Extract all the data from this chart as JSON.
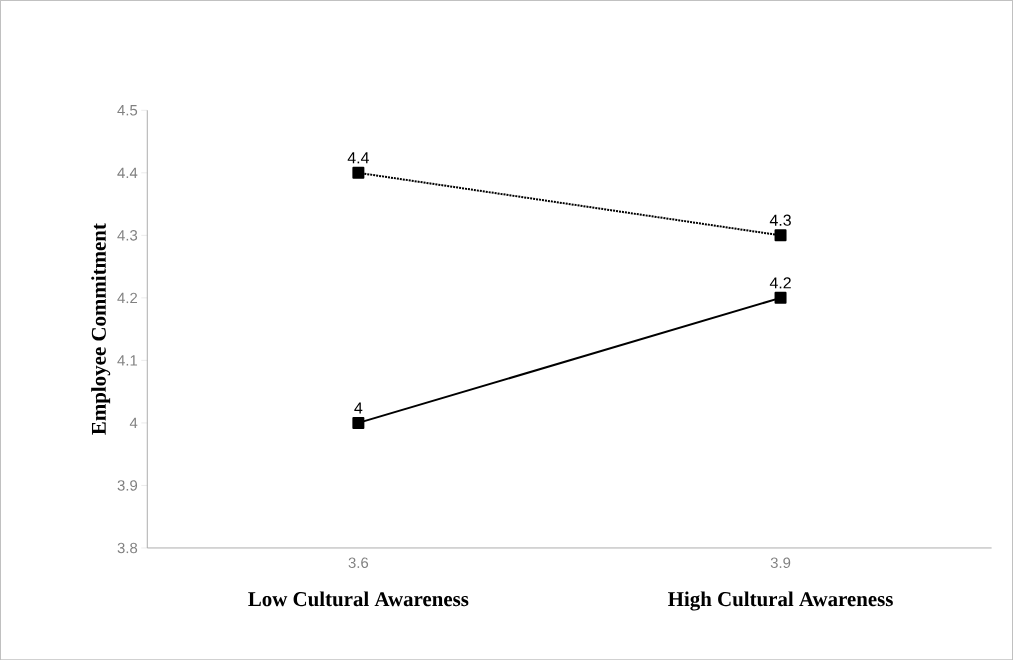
{
  "chart_data": {
    "type": "line",
    "ylabel": "Employee Commitment",
    "categories": [
      "3.6",
      "3.9"
    ],
    "series": [
      {
        "color": "#000000",
        "values": [
          4,
          4.2
        ],
        "line_style": "solid"
      },
      {
        "color": "#000000",
        "values": [
          4.4,
          4.3
        ],
        "line_style": "dotted"
      }
    ],
    "ylim": [
      3.8,
      4.5
    ],
    "yticks": [
      3.8,
      3.9,
      4,
      4.1,
      4.2,
      4.3,
      4.4,
      4.5
    ],
    "marker": "square",
    "data_labels": true,
    "grid": false,
    "annotations": [
      "Low Cultural Awareness",
      "High Cultural Awareness"
    ]
  }
}
